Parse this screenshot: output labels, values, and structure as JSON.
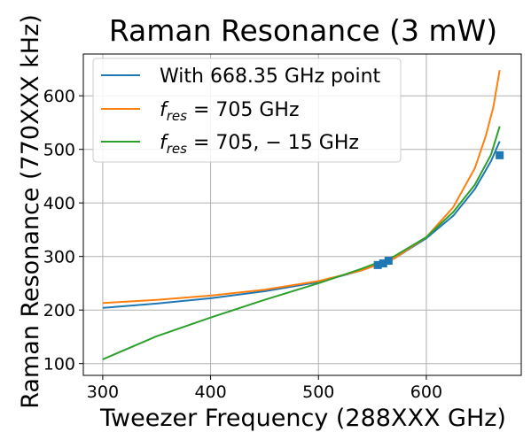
{
  "chart_data": {
    "type": "line",
    "title": "Raman Resonance (3 mW)",
    "xlabel": "Tweezer Frequency (288XXX GHz)",
    "ylabel": "Raman Resonance (770XXX kHz)",
    "xlim": [
      282,
      688
    ],
    "ylim": [
      78,
      678
    ],
    "xticks": [
      300,
      400,
      500,
      600
    ],
    "yticks": [
      100,
      200,
      300,
      400,
      500,
      600
    ],
    "grid": true,
    "legend_position": "upper-left",
    "series": [
      {
        "name": "With 668.35 GHz point",
        "color": "#1f77b4",
        "x": [
          300,
          350,
          400,
          450,
          500,
          540,
          570,
          600,
          625,
          645,
          660,
          668
        ],
        "y": [
          204,
          212,
          222,
          235,
          252,
          274,
          296,
          334,
          376,
          426,
          478,
          515
        ]
      },
      {
        "name": "f_res = 705 GHz",
        "legend_math": "f",
        "legend_sub": "res",
        "legend_rest": " = 705 GHz",
        "color": "#ff7f0e",
        "x": [
          300,
          350,
          400,
          450,
          500,
          540,
          570,
          600,
          625,
          645,
          655,
          662,
          668
        ],
        "y": [
          213,
          219,
          227,
          238,
          254,
          274,
          296,
          336,
          392,
          465,
          524,
          578,
          648
        ]
      },
      {
        "name": "f_res = 705, -15 GHz",
        "legend_math": "f",
        "legend_sub": "res",
        "legend_rest": " = 705, − 15 GHz",
        "color": "#2ca02c",
        "x": [
          300,
          350,
          400,
          450,
          500,
          540,
          570,
          600,
          625,
          645,
          660,
          668
        ],
        "y": [
          108,
          151,
          186,
          219,
          250,
          277,
          300,
          336,
          383,
          434,
          490,
          543
        ]
      }
    ],
    "markers": {
      "color": "#1f77b4",
      "shape": "square",
      "x": [
        555,
        560,
        565,
        668
      ],
      "y": [
        284,
        287,
        292,
        489
      ]
    }
  }
}
